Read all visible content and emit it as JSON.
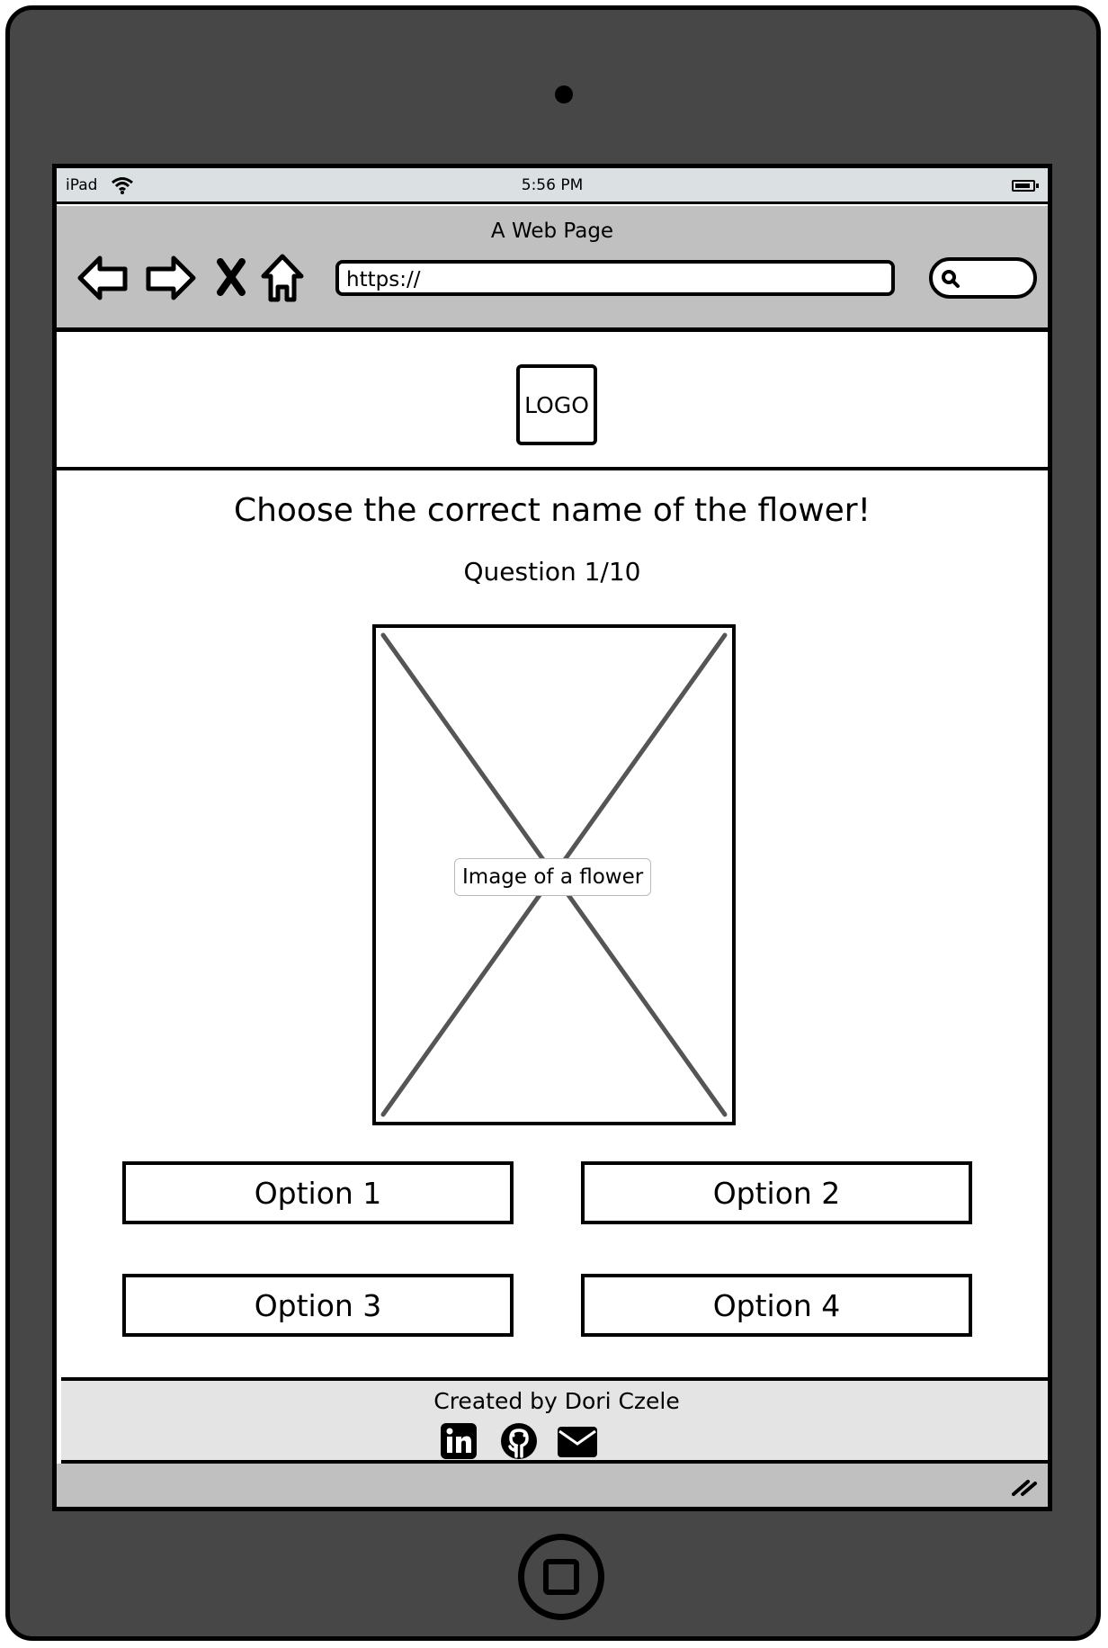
{
  "status_bar": {
    "carrier": "iPad",
    "time": "5:56 PM"
  },
  "browser": {
    "title": "A Web Page",
    "url": "https://"
  },
  "header": {
    "logo": "LOGO"
  },
  "quiz": {
    "title": "Choose the correct name of the flower!",
    "counter": "Question 1/10",
    "image_label": "Image of a flower",
    "options": [
      "Option 1",
      "Option 2",
      "Option 3",
      "Option 4"
    ]
  },
  "footer": {
    "credit": "Created by Dori Czele",
    "icons": [
      "linkedin-icon",
      "github-icon",
      "email-icon"
    ]
  },
  "colors": {
    "device_frame": "#474747",
    "status_bar": "#dbe0e3",
    "browser_bar": "#c0c0c0",
    "footer": "#e4e4e4"
  }
}
